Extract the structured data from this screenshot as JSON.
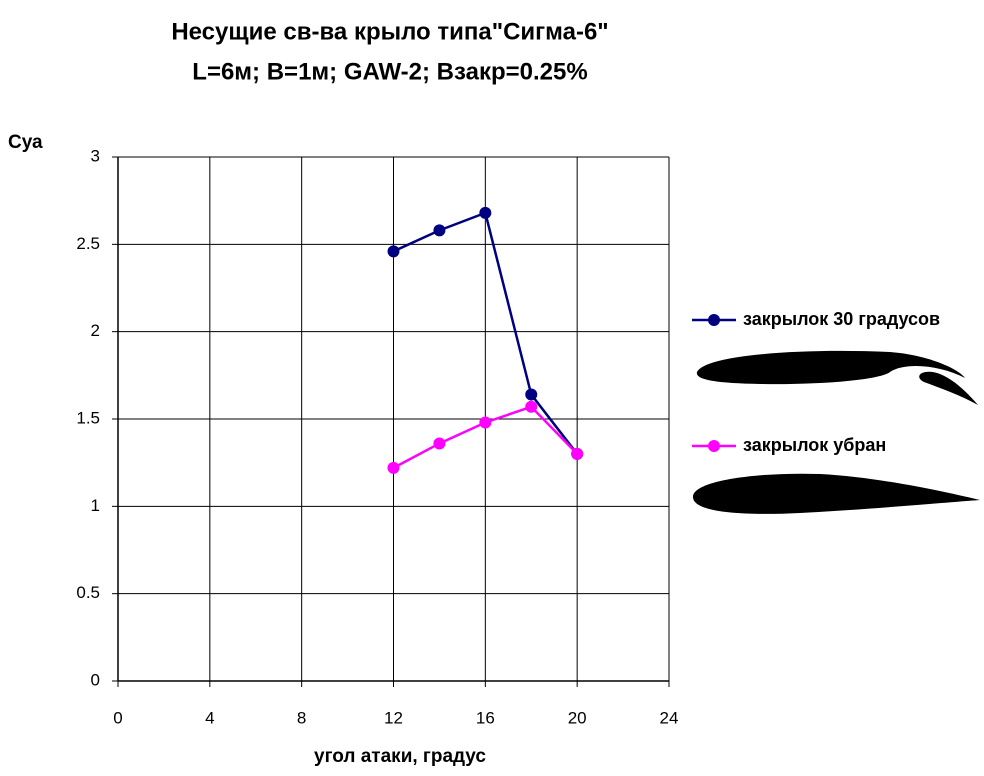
{
  "chart_data": {
    "type": "line",
    "title": "Несущие св-ва крыло типа\"Сигма-6\"",
    "subtitle": "L=6м; B=1м; GAW-2; Взакр=0.25%",
    "y_label": "Суа",
    "x_label": "угол атаки, градус",
    "x": [
      12,
      14,
      16,
      18,
      20
    ],
    "series": [
      {
        "name": "закрылок 30 градусов",
        "color": "#000080",
        "values": [
          2.46,
          2.58,
          2.68,
          1.64,
          1.3
        ]
      },
      {
        "name": "закрылок убран",
        "color": "#ff00ff",
        "values": [
          1.22,
          1.36,
          1.48,
          1.57,
          1.3
        ]
      }
    ],
    "xlim": [
      0,
      24
    ],
    "xticks": [
      0,
      4,
      8,
      12,
      16,
      20,
      24
    ],
    "ylim": [
      0,
      3
    ],
    "yticks": [
      0,
      0.5,
      1,
      1.5,
      2,
      2.5,
      3
    ],
    "grid": true,
    "legend": "right"
  }
}
